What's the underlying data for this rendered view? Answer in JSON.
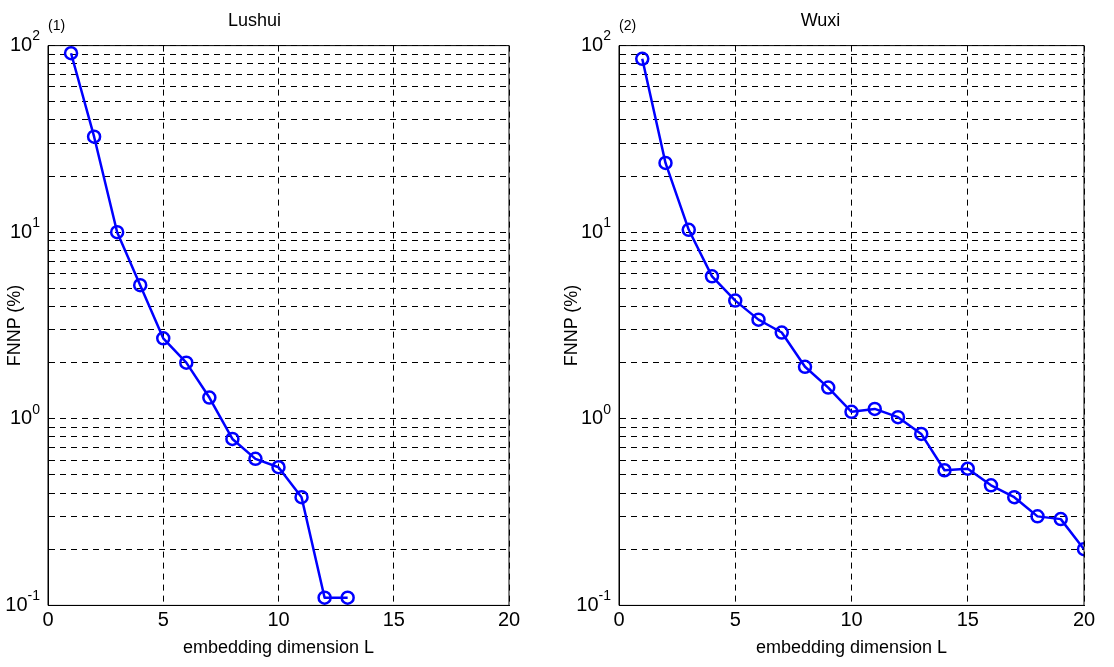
{
  "chart_data": [
    {
      "type": "line",
      "title": "Lushui",
      "annotations": [
        "(1)"
      ],
      "xlabel": "embedding dimension L",
      "ylabel": "FNNP (%)",
      "log": "y",
      "grid": true,
      "marker": "circle",
      "line_style": "solid",
      "x": [
        1,
        2,
        3,
        4,
        5,
        6,
        7,
        8,
        9,
        10,
        11,
        12,
        13
      ],
      "series": [
        {
          "color": "#0000ff",
          "values": [
            91,
            32.5,
            10,
            5.2,
            2.7,
            2.0,
            1.3,
            0.78,
            0.61,
            0.55,
            0.38,
            0.11,
            0.11
          ]
        }
      ],
      "xlim": [
        0,
        20
      ],
      "xticks": [
        0,
        5,
        10,
        15,
        20
      ],
      "ylim": [
        0.1,
        100
      ],
      "yticks": [
        {
          "value": 0.1,
          "label": "10$^{-1}$"
        },
        {
          "value": 0.2,
          "label": null
        },
        {
          "value": 0.3,
          "label": null
        },
        {
          "value": 0.4,
          "label": null
        },
        {
          "value": 0.5,
          "label": null
        },
        {
          "value": 0.6,
          "label": null
        },
        {
          "value": 0.7,
          "label": null
        },
        {
          "value": 0.8,
          "label": null
        },
        {
          "value": 0.9,
          "label": null
        },
        {
          "value": 1,
          "label": "10$^{0}$"
        },
        {
          "value": 2,
          "label": null
        },
        {
          "value": 3,
          "label": null
        },
        {
          "value": 4,
          "label": null
        },
        {
          "value": 5,
          "label": null
        },
        {
          "value": 6,
          "label": null
        },
        {
          "value": 7,
          "label": null
        },
        {
          "value": 8,
          "label": null
        },
        {
          "value": 9,
          "label": null
        },
        {
          "value": 10,
          "label": "10$^{1}$"
        },
        {
          "value": 20,
          "label": null
        },
        {
          "value": 30,
          "label": null
        },
        {
          "value": 40,
          "label": null
        },
        {
          "value": 50,
          "label": null
        },
        {
          "value": 60,
          "label": null
        },
        {
          "value": 70,
          "label": null
        },
        {
          "value": 80,
          "label": null
        },
        {
          "value": 90,
          "label": null
        },
        {
          "value": 100,
          "label": "10$^{2}$"
        }
      ]
    },
    {
      "type": "line",
      "title": "Wuxi",
      "annotations": [
        "(2)"
      ],
      "xlabel": "embedding dimension L",
      "ylabel": "FNNP (%)",
      "log": "y",
      "grid": true,
      "marker": "circle",
      "line_style": "solid",
      "x": [
        1,
        2,
        3,
        4,
        5,
        6,
        7,
        8,
        9,
        10,
        11,
        12,
        13,
        14,
        15,
        16,
        17,
        18,
        19,
        20
      ],
      "series": [
        {
          "color": "#0000ff",
          "values": [
            85,
            23.5,
            10.3,
            5.8,
            4.3,
            3.4,
            2.9,
            1.9,
            1.47,
            1.09,
            1.13,
            1.02,
            0.83,
            0.53,
            0.54,
            0.44,
            0.38,
            0.3,
            0.29,
            0.2
          ]
        }
      ],
      "xlim": [
        0,
        20
      ],
      "xticks": [
        0,
        5,
        10,
        15,
        20
      ],
      "ylim": [
        0.1,
        100
      ],
      "yticks": [
        {
          "value": 0.1,
          "label": "10$^{-1}$"
        },
        {
          "value": 0.2,
          "label": null
        },
        {
          "value": 0.3,
          "label": null
        },
        {
          "value": 0.4,
          "label": null
        },
        {
          "value": 0.5,
          "label": null
        },
        {
          "value": 0.6,
          "label": null
        },
        {
          "value": 0.7,
          "label": null
        },
        {
          "value": 0.8,
          "label": null
        },
        {
          "value": 0.9,
          "label": null
        },
        {
          "value": 1,
          "label": "10$^{0}$"
        },
        {
          "value": 2,
          "label": null
        },
        {
          "value": 3,
          "label": null
        },
        {
          "value": 4,
          "label": null
        },
        {
          "value": 5,
          "label": null
        },
        {
          "value": 6,
          "label": null
        },
        {
          "value": 7,
          "label": null
        },
        {
          "value": 8,
          "label": null
        },
        {
          "value": 9,
          "label": null
        },
        {
          "value": 10,
          "label": "10$^{1}$"
        },
        {
          "value": 20,
          "label": null
        },
        {
          "value": 30,
          "label": null
        },
        {
          "value": 40,
          "label": null
        },
        {
          "value": 50,
          "label": null
        },
        {
          "value": 60,
          "label": null
        },
        {
          "value": 70,
          "label": null
        },
        {
          "value": 80,
          "label": null
        },
        {
          "value": 90,
          "label": null
        },
        {
          "value": 100,
          "label": "10$^{2}$"
        }
      ]
    }
  ]
}
